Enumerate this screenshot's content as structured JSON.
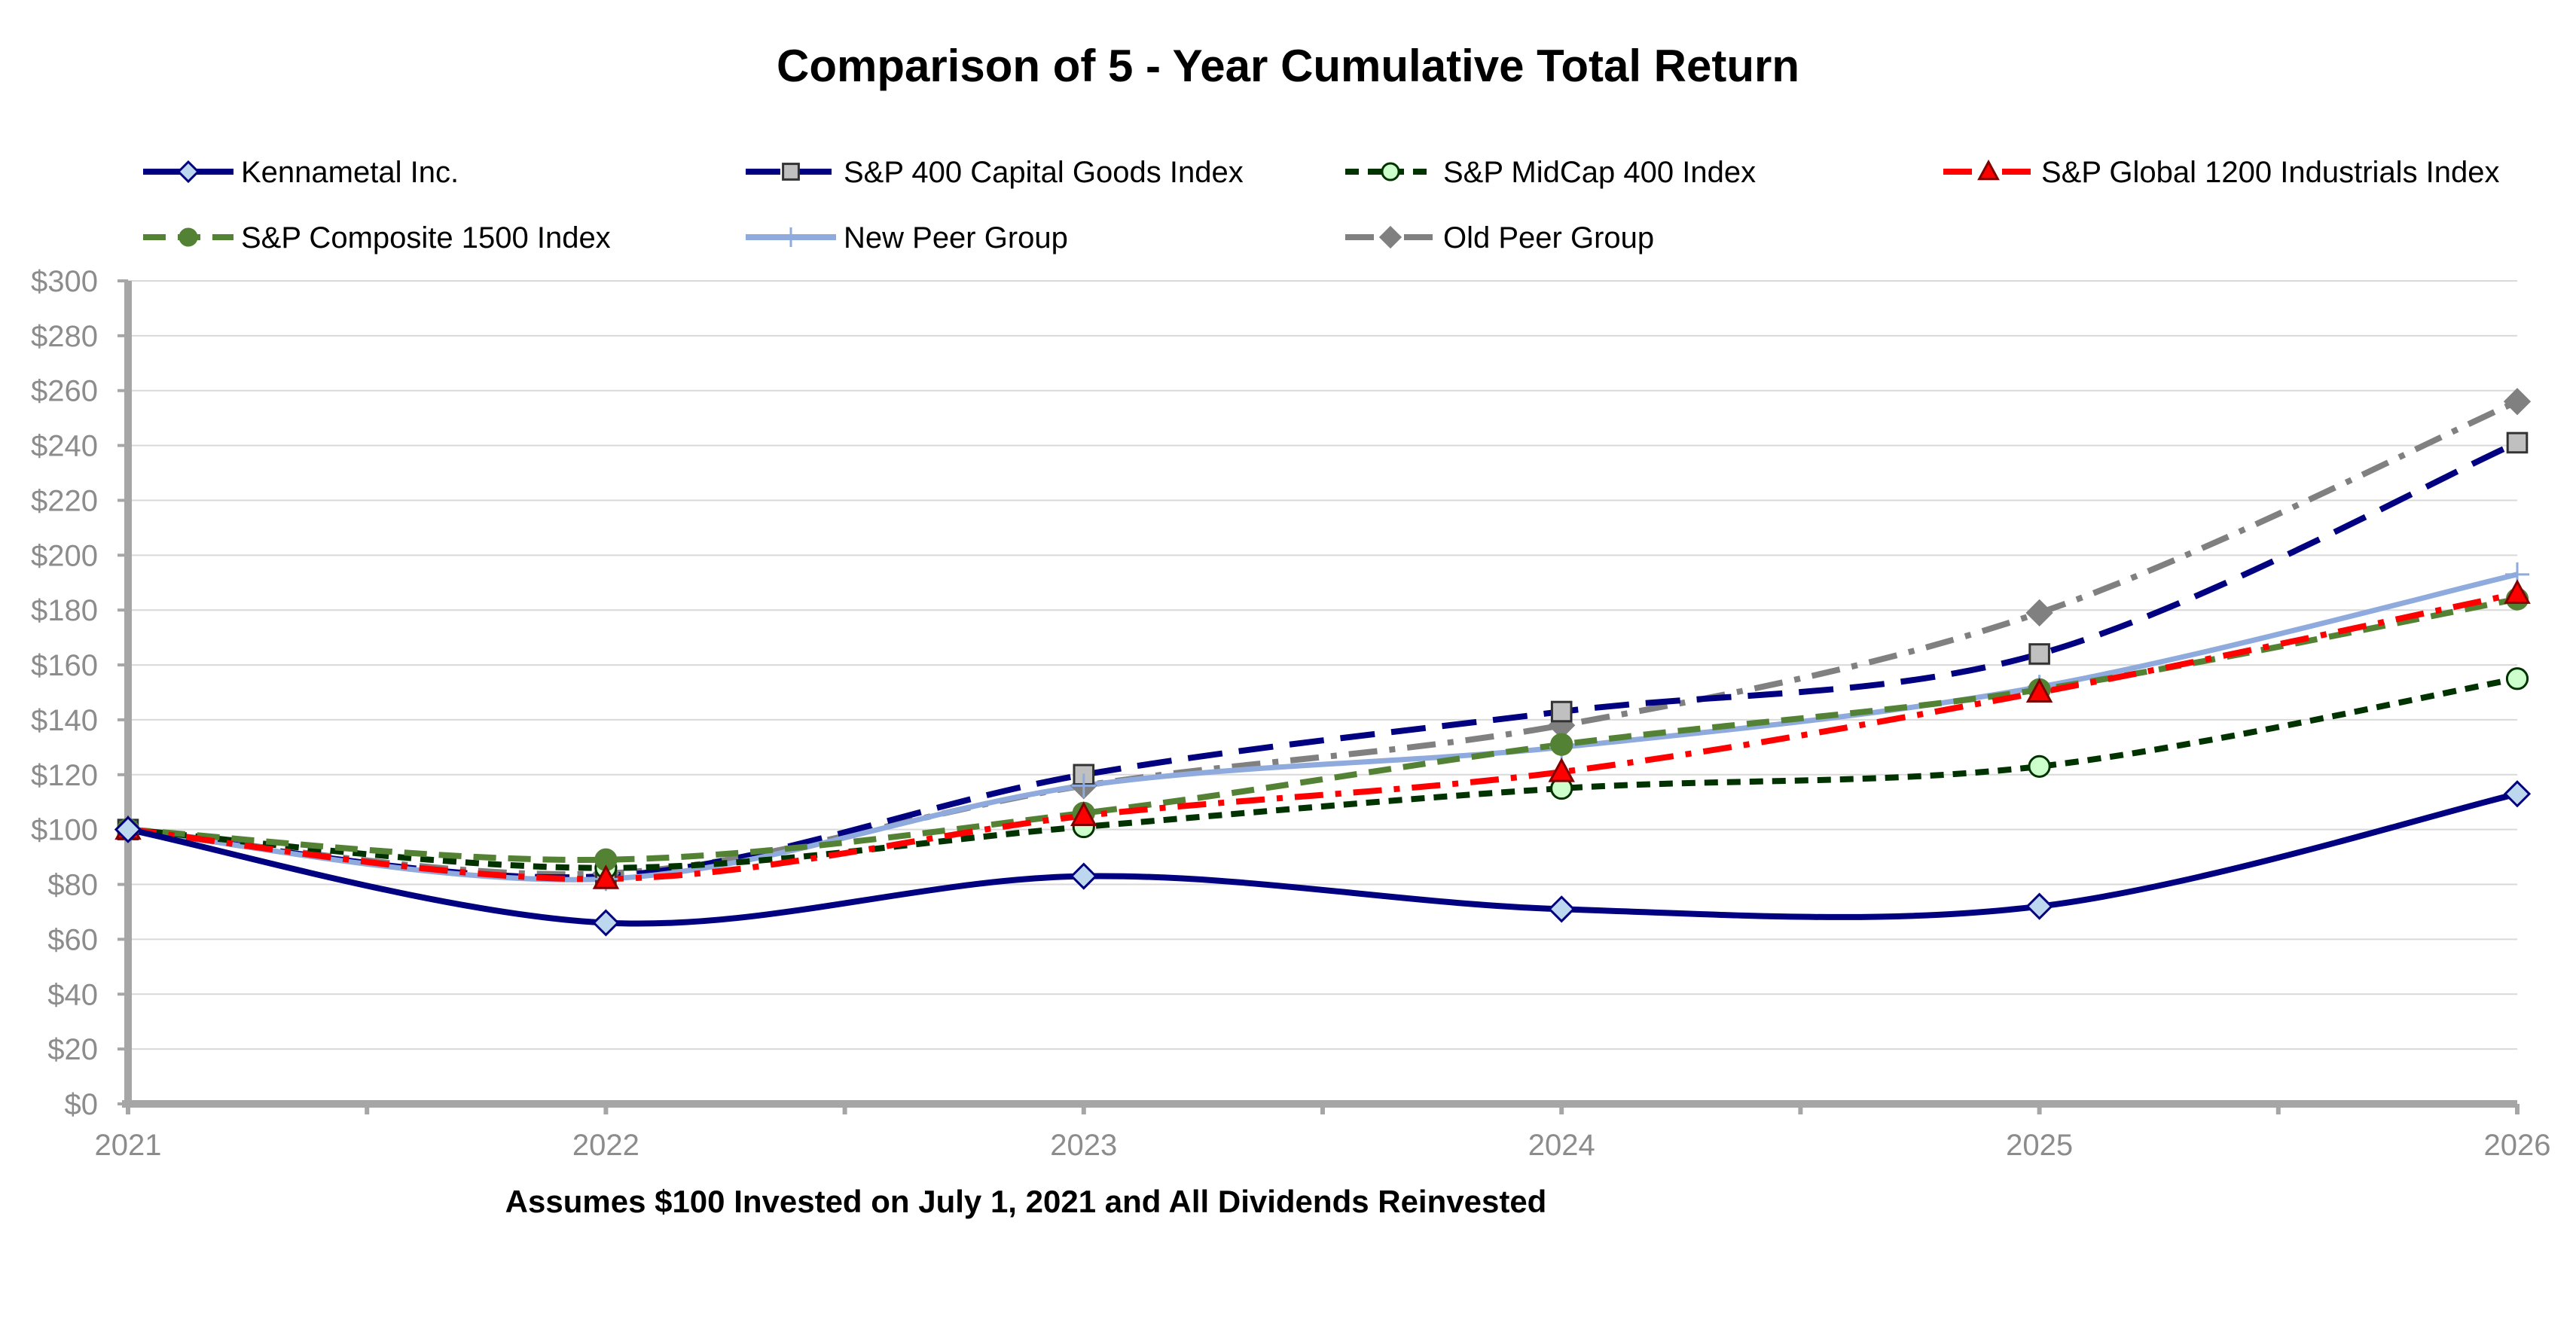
{
  "chart_data": {
    "type": "line",
    "title": "Comparison of 5 - Year Cumulative Total Return",
    "subtitle": "Assumes $100 Invested on July 1, 2021 and All Dividends Reinvested",
    "xlabel": "",
    "ylabel": "",
    "x": [
      "2021",
      "2022",
      "2023",
      "2024",
      "2025",
      "2026"
    ],
    "ylim": [
      0,
      300
    ],
    "y_ticks": [
      "$0",
      "$20",
      "$40",
      "$60",
      "$80",
      "$100",
      "$120",
      "$140",
      "$160",
      "$180",
      "$200",
      "$220",
      "$240",
      "$260",
      "$280",
      "$300"
    ],
    "grid": true,
    "series": [
      {
        "name": "Kennametal Inc.",
        "values": [
          100,
          66,
          83,
          71,
          72,
          113
        ],
        "color": "#000080",
        "dash": "solid",
        "marker": "diamond",
        "marker_fill": "#bdd7ee",
        "smooth": true
      },
      {
        "name": "S&P 400 Capital Goods Index",
        "values": [
          100,
          83,
          120,
          143,
          164,
          241
        ],
        "color": "#000080",
        "dash": "long-dash",
        "marker": "square",
        "marker_fill": "#c0c0c0",
        "smooth": true
      },
      {
        "name": "S&P MidCap 400 Index",
        "values": [
          100,
          86,
          101,
          115,
          123,
          155
        ],
        "color": "#003300",
        "dash": "short-dash",
        "marker": "circle",
        "marker_fill": "#ccffcc",
        "smooth": true
      },
      {
        "name": "S&P Global 1200 Industrials Index",
        "values": [
          100,
          82,
          105,
          121,
          150,
          186
        ],
        "color": "#ff0000",
        "dash": "dash-dot",
        "marker": "triangle",
        "marker_fill": "#ff0000",
        "smooth": true
      },
      {
        "name": "S&P Composite 1500 Index",
        "values": [
          100,
          89,
          106,
          131,
          151,
          184
        ],
        "color": "#548235",
        "dash": "dash",
        "marker": "circle",
        "marker_fill": "#548235",
        "smooth": true
      },
      {
        "name": "New Peer Group",
        "values": [
          100,
          82,
          116,
          130,
          152,
          193
        ],
        "color": "#8faadc",
        "dash": "solid",
        "marker": "plus",
        "marker_fill": "#8faadc",
        "smooth": true
      },
      {
        "name": "Old Peer Group",
        "values": [
          100,
          84,
          116,
          138,
          179,
          256
        ],
        "color": "#808080",
        "dash": "dash-dot",
        "marker": "diamond",
        "marker_fill": "#808080",
        "smooth": true
      }
    ],
    "legend": "top"
  }
}
